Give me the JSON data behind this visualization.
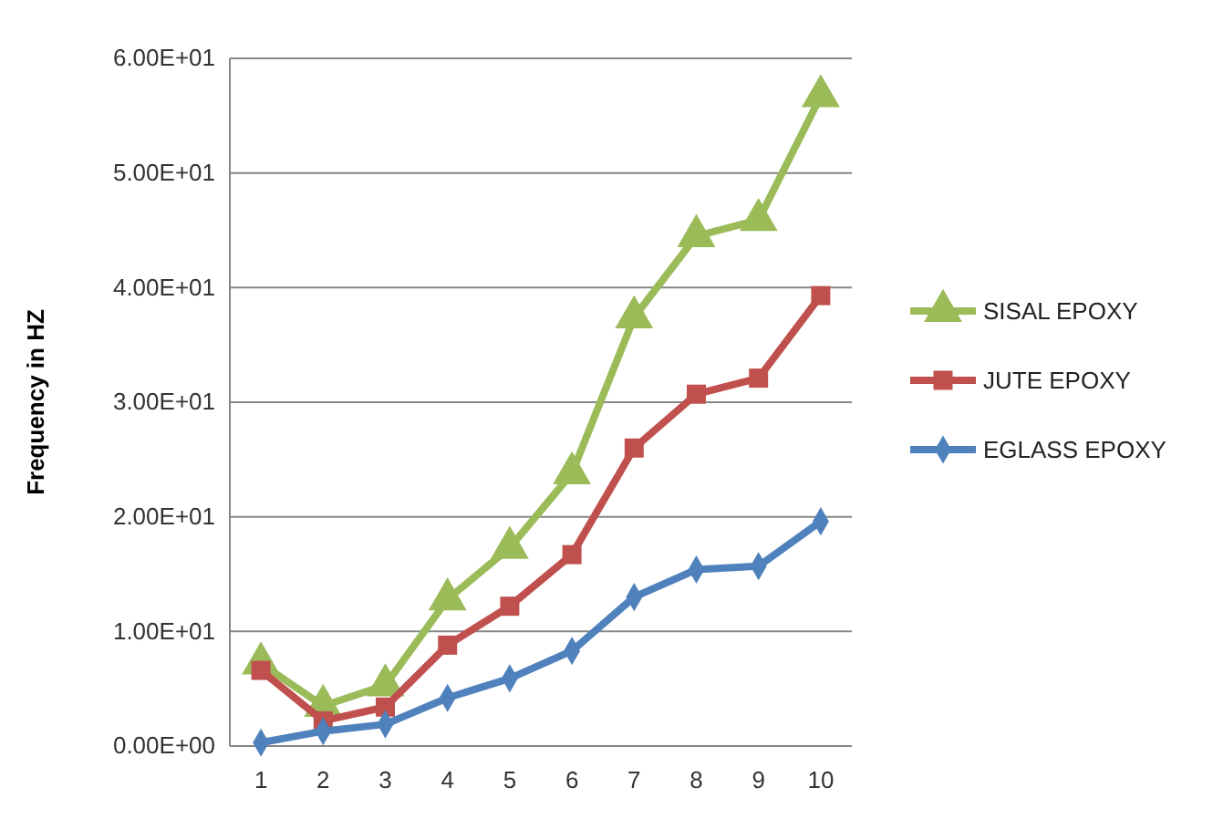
{
  "chart_data": {
    "type": "line",
    "ylabel": "Frequency in HZ",
    "categories": [
      "1",
      "2",
      "3",
      "4",
      "5",
      "6",
      "7",
      "8",
      "9",
      "10"
    ],
    "series": [
      {
        "name": "SISAL EPOXY",
        "color": "#9bbb59",
        "marker": "triangle",
        "values": [
          7.2,
          3.5,
          5.3,
          12.8,
          17.3,
          23.8,
          37.4,
          44.5,
          45.9,
          56.7
        ]
      },
      {
        "name": "JUTE EPOXY",
        "color": "#c0504d",
        "marker": "square",
        "values": [
          6.6,
          2.2,
          3.4,
          8.8,
          12.2,
          16.7,
          26,
          30.7,
          32.1,
          39.3
        ]
      },
      {
        "name": "EGLASS EPOXY",
        "color": "#4f81bd",
        "marker": "diamond",
        "values": [
          0.3,
          1.3,
          1.9,
          4.2,
          5.9,
          8.3,
          13,
          15.4,
          15.7,
          19.6
        ]
      }
    ],
    "ylim": [
      0,
      60
    ],
    "yticks": [
      {
        "value": 0,
        "label": "0.00E+00"
      },
      {
        "value": 10,
        "label": "1.00E+01"
      },
      {
        "value": 20,
        "label": "2.00E+01"
      },
      {
        "value": 30,
        "label": "3.00E+01"
      },
      {
        "value": 40,
        "label": "4.00E+01"
      },
      {
        "value": 50,
        "label": "5.00E+01"
      },
      {
        "value": 60,
        "label": "6.00E+01"
      }
    ],
    "grid": "y",
    "legend": "right"
  }
}
